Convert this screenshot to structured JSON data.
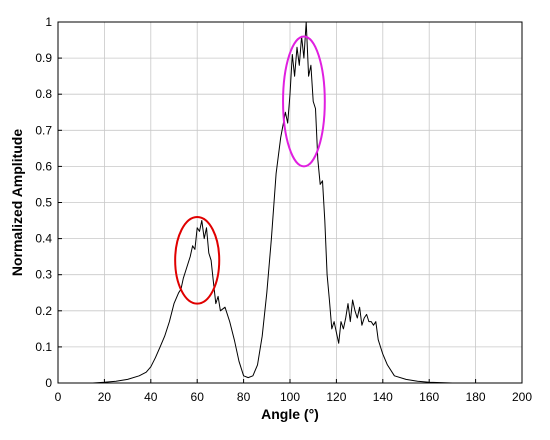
{
  "chart_data": {
    "type": "line",
    "title": "",
    "xlabel": "Angle (°)",
    "ylabel": "Normalized Amplitude",
    "xlim": [
      0,
      200
    ],
    "ylim": [
      0,
      1
    ],
    "grid": true,
    "x_ticks": [
      "0",
      "20",
      "40",
      "60",
      "80",
      "100",
      "120",
      "140",
      "160",
      "180",
      "200"
    ],
    "y_ticks": [
      "0",
      "0.1",
      "0.2",
      "0.3",
      "0.4",
      "0.5",
      "0.6",
      "0.7",
      "0.8",
      "0.9",
      "1"
    ],
    "colors": {
      "line": "#000000",
      "red_ellipse": "#e00000",
      "magenta_ellipse": "#e020e0",
      "grid": "#c8c8c8"
    },
    "series": [
      {
        "color": "#000000",
        "x": [
          10,
          15,
          20,
          25,
          30,
          35,
          38,
          40,
          42,
          44,
          46,
          48,
          50,
          52,
          53,
          54,
          55,
          56,
          57,
          58,
          59,
          60,
          61,
          62,
          63,
          64,
          65,
          66,
          67,
          68,
          69,
          70,
          72,
          74,
          76,
          78,
          80,
          82,
          84,
          86,
          88,
          90,
          92,
          94,
          96,
          98,
          99,
          100,
          101,
          102,
          103,
          104,
          105,
          106,
          107,
          108,
          109,
          110,
          111,
          112,
          113,
          114,
          115,
          116,
          117,
          118,
          119,
          120,
          121,
          122,
          123,
          124,
          125,
          126,
          127,
          128,
          129,
          130,
          131,
          132,
          133,
          134,
          135,
          136,
          137,
          138,
          140,
          142,
          145,
          150,
          155,
          160,
          165,
          170
        ],
        "y": [
          0,
          0,
          0.002,
          0.005,
          0.01,
          0.02,
          0.03,
          0.045,
          0.07,
          0.1,
          0.13,
          0.17,
          0.22,
          0.25,
          0.26,
          0.29,
          0.31,
          0.33,
          0.35,
          0.38,
          0.37,
          0.43,
          0.42,
          0.45,
          0.4,
          0.43,
          0.36,
          0.34,
          0.28,
          0.22,
          0.24,
          0.2,
          0.21,
          0.17,
          0.12,
          0.06,
          0.02,
          0.015,
          0.02,
          0.05,
          0.13,
          0.25,
          0.4,
          0.58,
          0.68,
          0.75,
          0.72,
          0.8,
          0.91,
          0.85,
          0.93,
          0.88,
          0.96,
          0.9,
          1.0,
          0.85,
          0.88,
          0.78,
          0.76,
          0.62,
          0.55,
          0.56,
          0.45,
          0.3,
          0.23,
          0.15,
          0.17,
          0.14,
          0.11,
          0.17,
          0.15,
          0.18,
          0.22,
          0.17,
          0.23,
          0.2,
          0.18,
          0.21,
          0.16,
          0.18,
          0.19,
          0.17,
          0.17,
          0.16,
          0.17,
          0.12,
          0.08,
          0.05,
          0.02,
          0.01,
          0.005,
          0.002,
          0.001,
          0
        ]
      }
    ],
    "annotations": [
      {
        "shape": "ellipse",
        "color": "red",
        "cx": 60,
        "cy": 0.34,
        "rx": 9.5,
        "ry": 0.12
      },
      {
        "shape": "ellipse",
        "color": "magenta",
        "cx": 106,
        "cy": 0.78,
        "rx": 9,
        "ry": 0.18
      }
    ]
  }
}
